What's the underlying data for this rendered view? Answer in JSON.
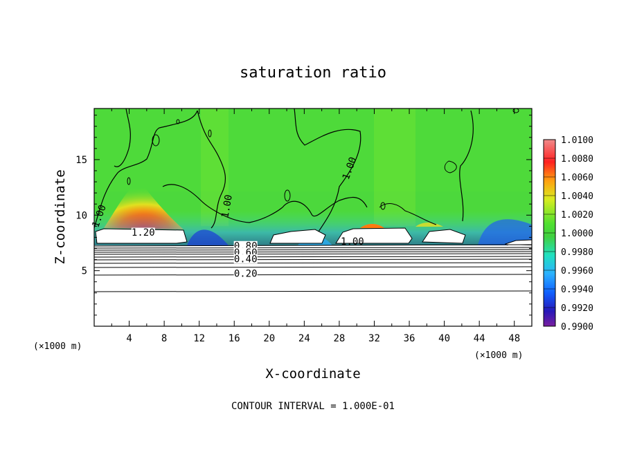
{
  "chart_data": {
    "type": "heatmap",
    "title": "saturation ratio",
    "xlabel": "X-coordinate",
    "ylabel": "Z-coordinate",
    "x_unit": "(×1000 m)",
    "x_ticks": [
      4,
      8,
      12,
      16,
      20,
      24,
      28,
      32,
      36,
      40,
      44,
      48
    ],
    "xlim": [
      0,
      50
    ],
    "y_ticks": [
      5,
      10,
      15
    ],
    "ylim": [
      0,
      19.6
    ],
    "x_unit_left": "(×1000 m)",
    "colorbar": {
      "min": 0.99,
      "max": 1.01,
      "labels": [
        "1.0100",
        "1.0080",
        "1.0060",
        "1.0040",
        "1.0020",
        "1.0000",
        "0.9980",
        "0.9960",
        "0.9940",
        "0.9920",
        "0.9900"
      ],
      "colors": [
        "#7a1fa0",
        "#2818b8",
        "#1060ff",
        "#2cb0ff",
        "#20e0c0",
        "#40d040",
        "#50e030",
        "#d8ec20",
        "#ffa010",
        "#ff2020",
        "#f08a8a"
      ]
    },
    "contour_labels": [
      {
        "text": "1.20",
        "x": 5.6,
        "z": 8.4
      },
      {
        "text": "1.00",
        "x": 15.2,
        "z": 10.8
      },
      {
        "text": "1.00",
        "x": 29.5,
        "z": 7.6
      },
      {
        "text": "1.00",
        "x": 29.2,
        "z": 14.2
      },
      {
        "text": "1.00",
        "x": 0.6,
        "z": 9.9
      },
      {
        "text": "0.80",
        "x": 17.3,
        "z": 7.2
      },
      {
        "text": "0.60",
        "x": 17.3,
        "z": 6.6
      },
      {
        "text": "0.40",
        "x": 17.3,
        "z": 6.0
      },
      {
        "text": "0.20",
        "x": 17.3,
        "z": 4.7
      }
    ],
    "contour_interval_text": "CONTOUR INTERVAL = 1.000E-01"
  }
}
